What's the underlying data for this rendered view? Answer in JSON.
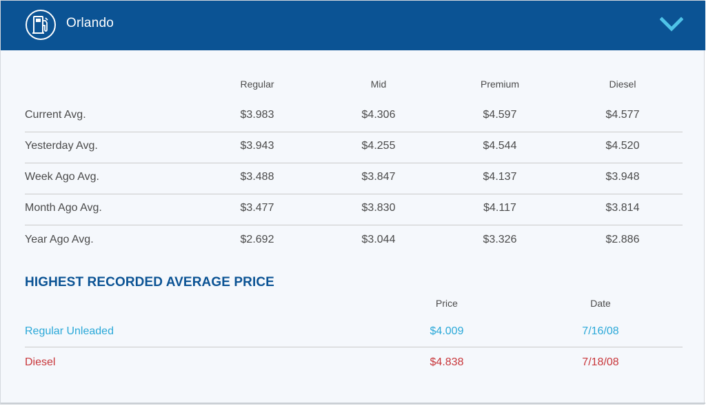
{
  "header": {
    "city": "Orlando",
    "icon": "gas-pump-icon",
    "toggle_icon": "chevron-down-icon",
    "bg_color": "#0b5394"
  },
  "averages": {
    "columns": [
      "Regular",
      "Mid",
      "Premium",
      "Diesel"
    ],
    "rows": [
      {
        "label": "Current Avg.",
        "values": [
          "$3.983",
          "$4.306",
          "$4.597",
          "$4.577"
        ]
      },
      {
        "label": "Yesterday Avg.",
        "values": [
          "$3.943",
          "$4.255",
          "$4.544",
          "$4.520"
        ]
      },
      {
        "label": "Week Ago Avg.",
        "values": [
          "$3.488",
          "$3.847",
          "$4.137",
          "$3.948"
        ]
      },
      {
        "label": "Month Ago Avg.",
        "values": [
          "$3.477",
          "$3.830",
          "$4.117",
          "$3.814"
        ]
      },
      {
        "label": "Year Ago Avg.",
        "values": [
          "$2.692",
          "$3.044",
          "$3.326",
          "$2.886"
        ]
      }
    ]
  },
  "highest": {
    "title": "HIGHEST RECORDED AVERAGE PRICE",
    "columns": [
      "Price",
      "Date"
    ],
    "rows": [
      {
        "label": "Regular Unleaded",
        "price": "$4.009",
        "date": "7/16/08",
        "color": "#2aa8d8"
      },
      {
        "label": "Diesel",
        "price": "$4.838",
        "date": "7/18/08",
        "color": "#c8363a"
      }
    ]
  }
}
